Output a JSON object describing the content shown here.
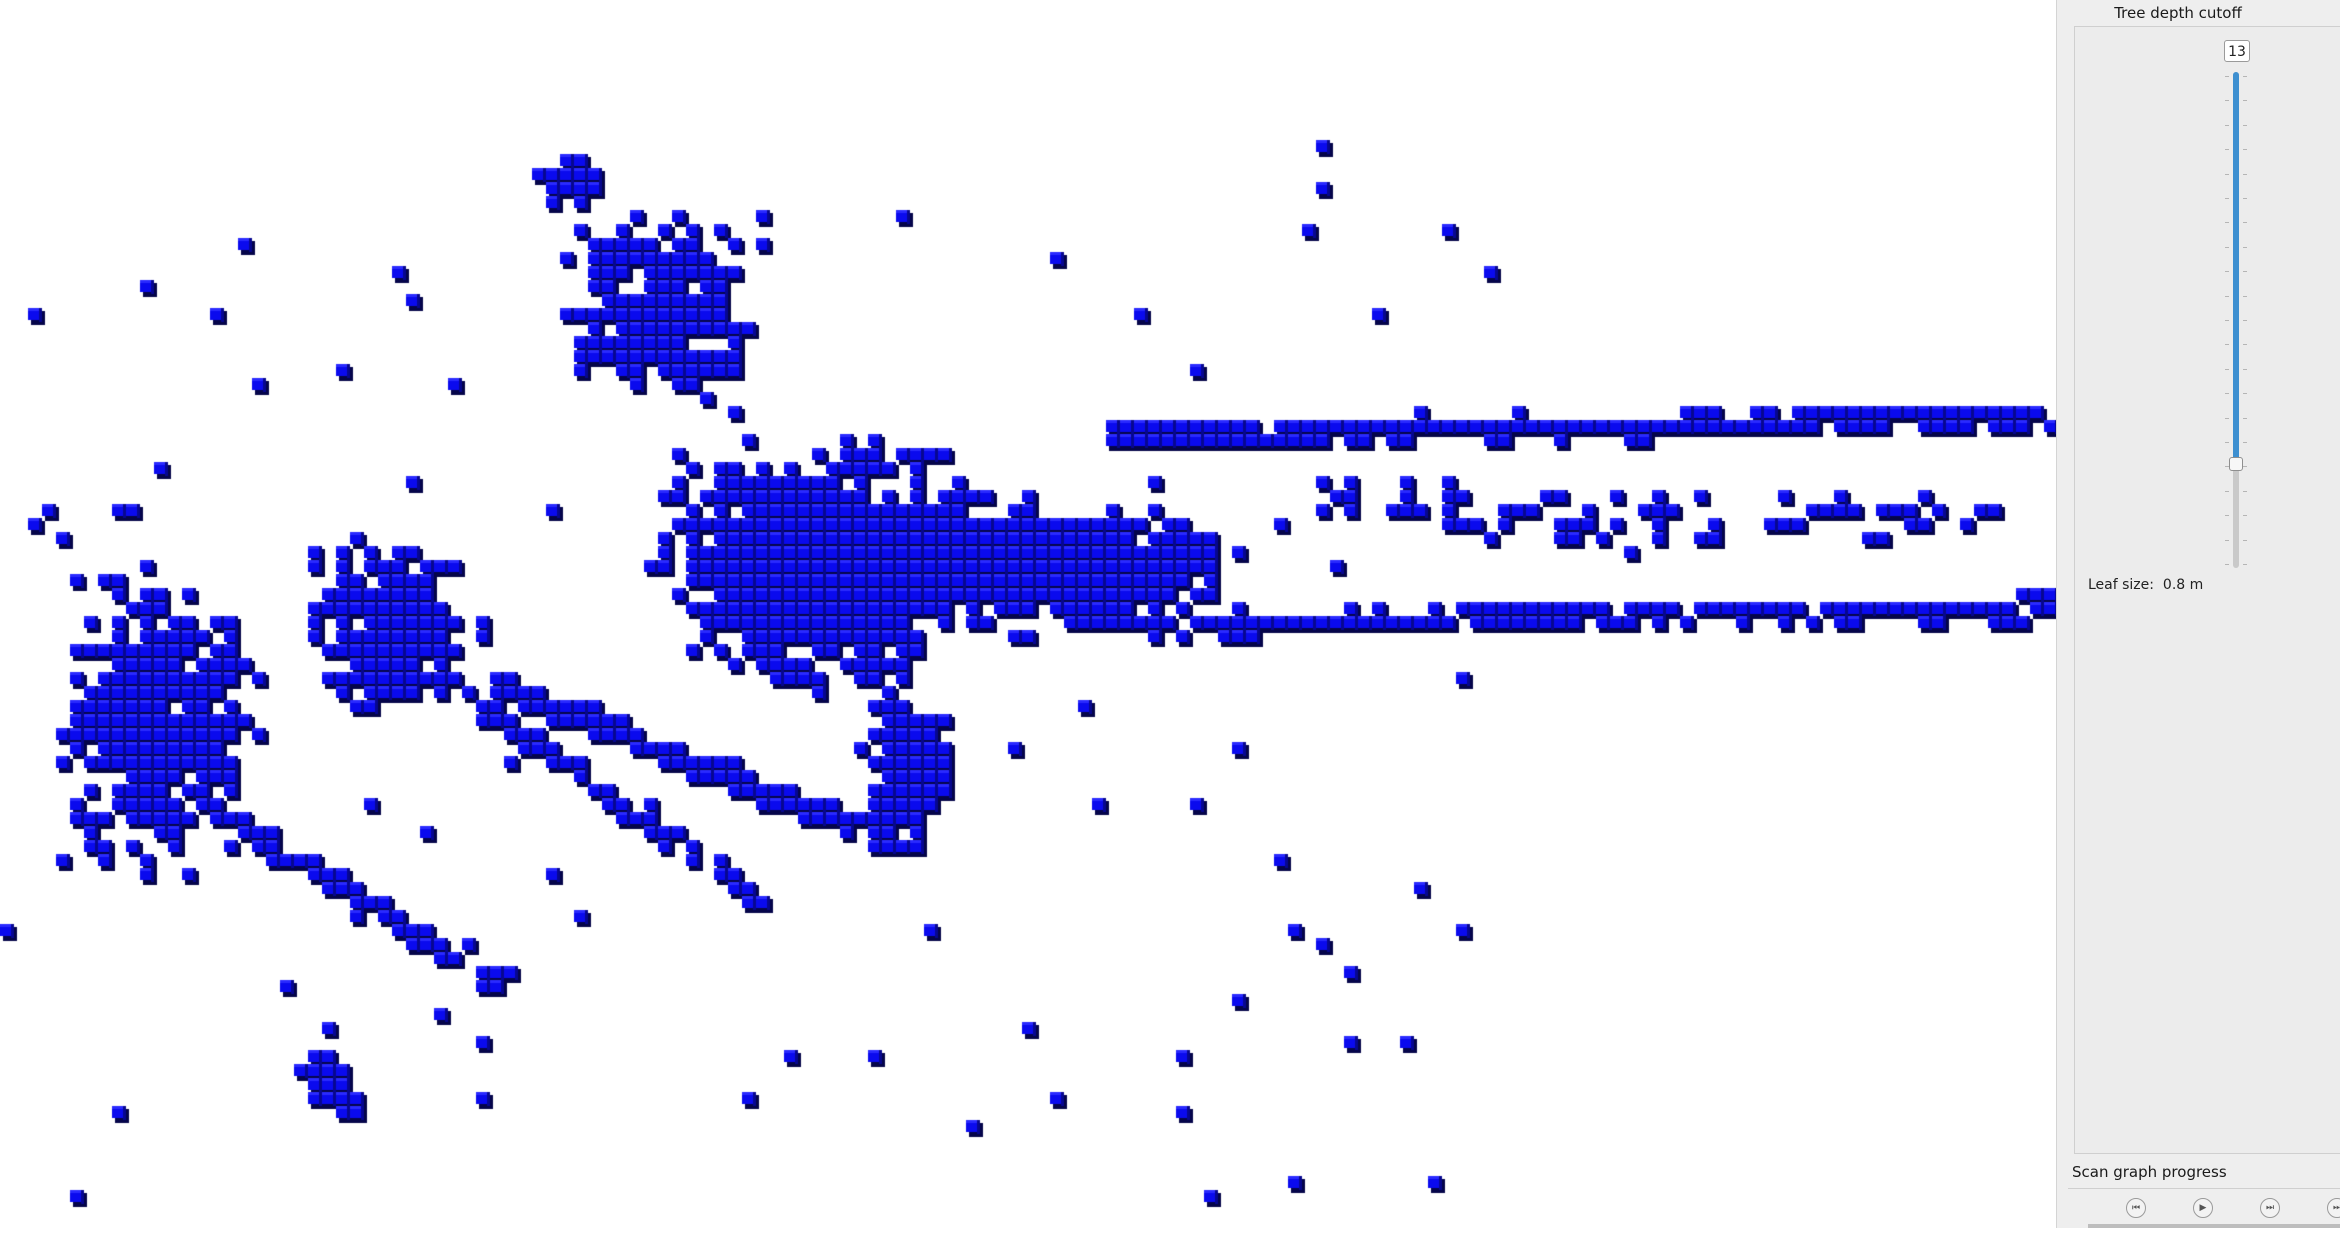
{
  "viewport": {
    "voxel_color": "#0a0aee",
    "background_color": "#ffffff"
  },
  "panel": {
    "title": "Tree depth cutoff",
    "slider": {
      "value": "13",
      "fill_fraction": 0.79,
      "accent_color": "#3d8fd0"
    },
    "leaf_size_label": "Leaf size:",
    "leaf_size_value": "0.8 m"
  },
  "scan_graph": {
    "title": "Scan graph progress",
    "buttons": [
      {
        "name": "skip-back-icon",
        "glyph": "⏮"
      },
      {
        "name": "play-icon",
        "glyph": "▶"
      },
      {
        "name": "step-forward-icon",
        "glyph": "⏭"
      },
      {
        "name": "skip-end-icon",
        "glyph": "⏭"
      }
    ]
  }
}
